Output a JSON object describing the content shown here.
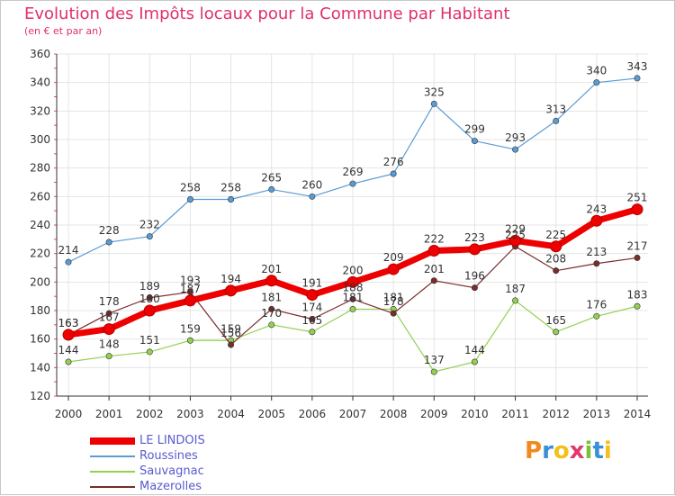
{
  "title": "Evolution des Impôts locaux pour la Commune par Habitant",
  "subtitle": "(en € et par an)",
  "brand": {
    "letters": [
      "P",
      "r",
      "o",
      "x",
      "i",
      "t",
      "i"
    ],
    "colors": [
      "#f08a1c",
      "#3b8fd6",
      "#f3c01a",
      "#e03a6e",
      "#7ec03a",
      "#3b8fd6",
      "#f3c01a"
    ]
  },
  "chart_data": {
    "type": "line",
    "title": "Evolution des Impôts locaux pour la Commune par Habitant",
    "subtitle": "(en € et par an)",
    "xlabel": "",
    "ylabel": "",
    "ylim": [
      120,
      360
    ],
    "yticks": [
      120,
      140,
      160,
      180,
      200,
      220,
      240,
      260,
      280,
      300,
      320,
      340,
      360
    ],
    "grid": true,
    "legend_position": "bottom-left",
    "x": [
      "2000",
      "2001",
      "2002",
      "2003",
      "2004",
      "2005",
      "2006",
      "2007",
      "2008",
      "2009",
      "2010",
      "2011",
      "2012",
      "2013",
      "2014"
    ],
    "series": [
      {
        "name": "LE LINDOIS",
        "color": "#ee0000",
        "values": [
          163,
          167,
          180,
          187,
          194,
          201,
          191,
          200,
          209,
          222,
          223,
          229,
          225,
          243,
          251
        ]
      },
      {
        "name": "Roussines",
        "color": "#5b9bd5",
        "values": [
          214,
          228,
          232,
          258,
          258,
          265,
          260,
          269,
          276,
          325,
          299,
          293,
          313,
          340,
          343
        ]
      },
      {
        "name": "Sauvagnac",
        "color": "#92d050",
        "values": [
          144,
          148,
          151,
          159,
          159,
          170,
          165,
          181,
          181,
          137,
          144,
          187,
          165,
          176,
          183
        ]
      },
      {
        "name": "Mazerolles",
        "color": "#7b2c2c",
        "values": [
          163,
          178,
          189,
          193,
          156,
          181,
          174,
          188,
          178,
          201,
          196,
          225,
          208,
          213,
          217
        ]
      }
    ]
  }
}
